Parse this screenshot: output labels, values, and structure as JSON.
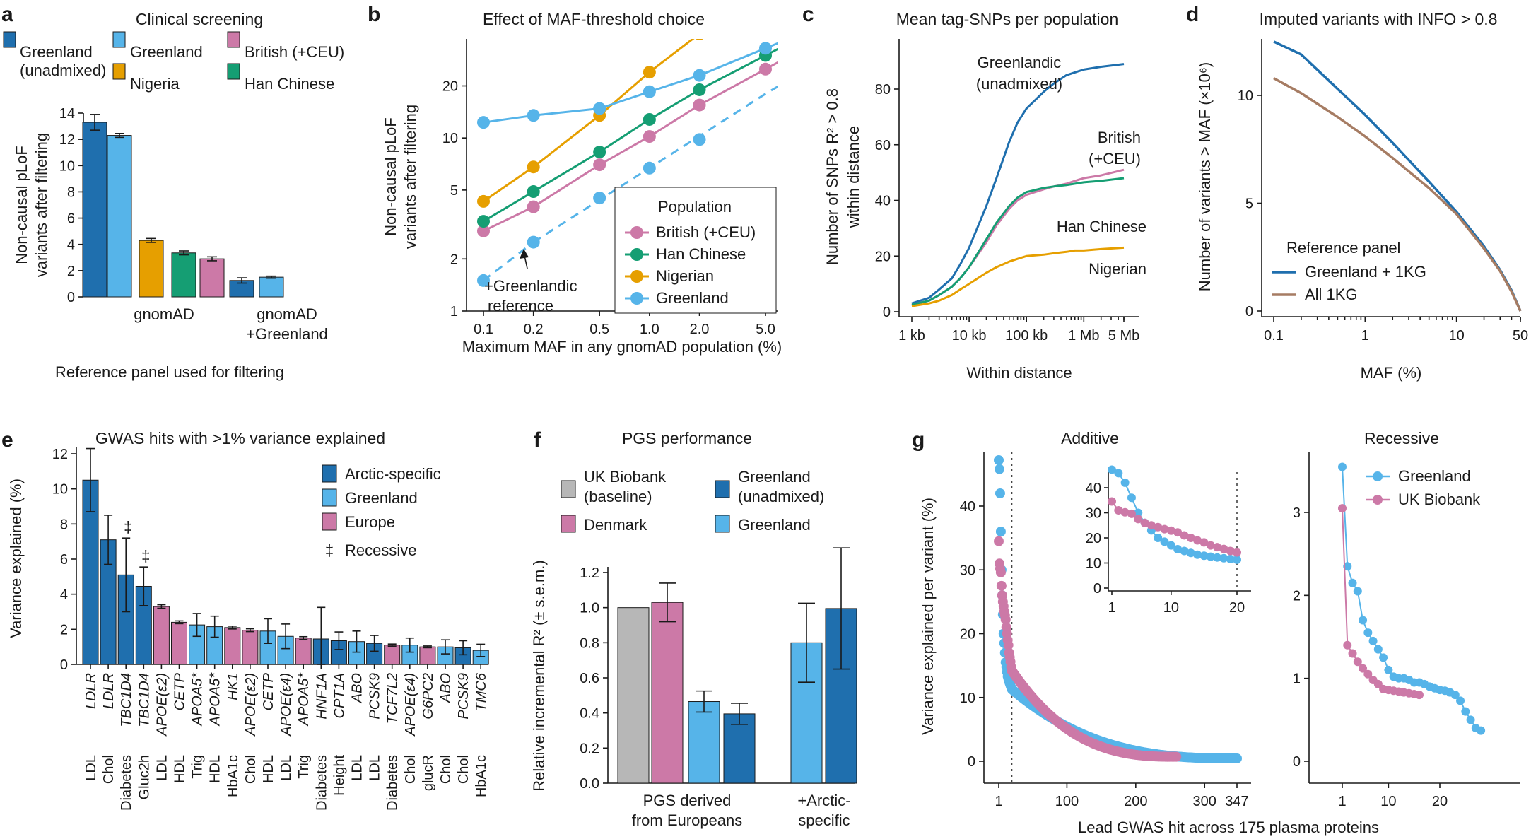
{
  "panel_labels": [
    "a",
    "b",
    "c",
    "d",
    "e",
    "f",
    "g"
  ],
  "colors": {
    "greenland_unadmixed": "#1f6fae",
    "greenland": "#56b4e9",
    "british": "#cc79a7",
    "nigeria": "#e69f00",
    "han": "#159e73",
    "gray": "#b7b7b7",
    "all1kg": "#a67c63"
  },
  "chart_data": [
    {
      "id": "a",
      "type": "bar",
      "title": "Clinical screening",
      "ylabel": "Non-causal pLoF variants after filtering",
      "xlabel": "Reference panel used for filtering",
      "ylim": [
        0,
        14
      ],
      "yticks": [
        0,
        2,
        4,
        6,
        8,
        10,
        12,
        14
      ],
      "groups": [
        "gnomAD",
        "gnomAD +Greenland"
      ],
      "legend": [
        "Greenland (unadmixed)",
        "Greenland",
        "British (+CEU)",
        "Nigeria",
        "Han Chinese"
      ],
      "bars": [
        {
          "group": 0,
          "series": "Greenland (unadmixed)",
          "value": 13.3,
          "err": 0.6
        },
        {
          "group": 0,
          "series": "Greenland",
          "value": 12.3,
          "err": 0.15
        },
        {
          "group": 0,
          "series": "Nigeria",
          "value": 4.3,
          "err": 0.15
        },
        {
          "group": 0,
          "series": "Han Chinese",
          "value": 3.35,
          "err": 0.15
        },
        {
          "group": 0,
          "series": "British (+CEU)",
          "value": 2.9,
          "err": 0.15
        },
        {
          "group": 1,
          "series": "Greenland (unadmixed)",
          "value": 1.25,
          "err": 0.2
        },
        {
          "group": 1,
          "series": "Greenland",
          "value": 1.5,
          "err": 0.08
        }
      ]
    },
    {
      "id": "b",
      "type": "line",
      "title": "Effect of MAF-threshold choice",
      "xlabel": "Maximum MAF in any gnomAD population (%)",
      "ylabel": "Non-causal pLoF variants after filtering",
      "x_scale": "log",
      "y_scale": "log",
      "xticks": [
        "0.1",
        "0.2",
        "0.5",
        "1.0",
        "2.0",
        "5.0"
      ],
      "yticks": [
        "1",
        "2",
        "5",
        "10",
        "20"
      ],
      "x": [
        0.1,
        0.2,
        0.5,
        1.0,
        2.0,
        5.0
      ],
      "legend_title": "Population",
      "series": [
        {
          "name": "British (+CEU)",
          "values": [
            2.9,
            4.0,
            7.0,
            10.2,
            15.5,
            25.0
          ]
        },
        {
          "name": "Han Chinese",
          "values": [
            3.3,
            4.9,
            8.3,
            12.8,
            19.0,
            30.0
          ]
        },
        {
          "name": "Nigerian",
          "values": [
            4.3,
            6.8,
            13.5,
            24.0,
            40.0,
            70.0
          ]
        },
        {
          "name": "Greenland",
          "values": [
            12.3,
            13.5,
            14.8,
            18.5,
            23.0,
            33.0
          ]
        },
        {
          "name": "",
          "values": [
            1.5,
            2.5,
            4.5,
            6.7,
            9.8,
            18.0
          ],
          "dashed": true
        }
      ],
      "annotation": "+Greenlandic reference"
    },
    {
      "id": "c",
      "type": "line",
      "title": "Mean tag-SNPs per population",
      "xlabel": "Within distance",
      "ylabel": "Number of SNPs R² > 0.8 within distance",
      "x_scale": "log",
      "xticks": [
        "1 kb",
        "10 kb",
        "100 kb",
        "1 Mb",
        "5 Mb"
      ],
      "yticks": [
        0,
        20,
        40,
        60,
        80
      ],
      "ylim": [
        0,
        95
      ],
      "x_kb": [
        1,
        2,
        3,
        5,
        7,
        10,
        20,
        30,
        50,
        70,
        100,
        200,
        300,
        500,
        700,
        1000,
        2000,
        5000
      ],
      "series": [
        {
          "name": "Greenlandic (unadmixed)",
          "values": [
            3,
            5,
            8,
            12,
            17,
            23,
            38,
            48,
            61,
            68,
            73,
            79,
            82,
            85,
            86,
            87,
            88,
            89
          ]
        },
        {
          "name": "British (+CEU)",
          "values": [
            2.5,
            4,
            6,
            9,
            12,
            16,
            25,
            31,
            37,
            40,
            42,
            44,
            45,
            46,
            47,
            48,
            49,
            51
          ]
        },
        {
          "name": "Han Chinese",
          "values": [
            2.5,
            4,
            6,
            9,
            12,
            16,
            26,
            32,
            38,
            41,
            43,
            44.5,
            45,
            45.5,
            46,
            46.5,
            47,
            48
          ]
        },
        {
          "name": "Nigerian",
          "values": [
            2,
            3,
            4,
            6,
            8,
            10,
            14,
            16,
            18,
            19,
            20,
            20.5,
            21,
            21.5,
            22,
            22,
            22.5,
            23
          ]
        }
      ]
    },
    {
      "id": "d",
      "type": "line",
      "title": "Imputed variants with INFO > 0.8",
      "xlabel": "MAF (%)",
      "ylabel": "Number of variants > MAF (×10⁶)",
      "x_scale": "log",
      "xticks": [
        "0.1",
        "1",
        "10",
        "50"
      ],
      "yticks": [
        0,
        5,
        10
      ],
      "legend_title": "Reference panel",
      "maf": [
        0.1,
        0.2,
        0.5,
        1,
        2,
        5,
        10,
        20,
        30,
        40,
        50
      ],
      "series": [
        {
          "name": "Greenland + 1KG",
          "values": [
            12.5,
            11.9,
            10.3,
            9.1,
            7.8,
            6.0,
            4.6,
            3.0,
            1.9,
            0.95,
            0.0
          ]
        },
        {
          "name": "All 1KG",
          "values": [
            10.8,
            10.1,
            9.0,
            8.1,
            7.1,
            5.7,
            4.5,
            2.9,
            1.85,
            0.9,
            0.0
          ]
        }
      ]
    },
    {
      "id": "e",
      "type": "bar",
      "title": "GWAS hits with >1% variance explained",
      "ylabel": "Variance explained (%)",
      "ylim": [
        0,
        12
      ],
      "yticks": [
        0,
        2,
        4,
        6,
        8,
        10,
        12
      ],
      "legend": [
        "Arctic-specific",
        "Greenland",
        "Europe",
        "Recessive"
      ],
      "recessive_marker": "‡",
      "hits": [
        {
          "gene": "LDLR",
          "trait": "LDL",
          "value": 10.5,
          "err": 1.8,
          "cat": "Arctic-specific"
        },
        {
          "gene": "LDLR",
          "trait": "Chol",
          "value": 7.1,
          "err": 1.4,
          "cat": "Arctic-specific"
        },
        {
          "gene": "TBC1D4",
          "trait": "Diabetes",
          "value": 5.1,
          "err": 2.1,
          "cat": "Arctic-specific",
          "recessive": true
        },
        {
          "gene": "TBC1D4",
          "trait": "Gluc2h",
          "value": 4.45,
          "err": 1.1,
          "cat": "Arctic-specific",
          "recessive": true
        },
        {
          "gene": "APOE(ε2)",
          "trait": "LDL",
          "value": 3.3,
          "err": 0.1,
          "cat": "Europe"
        },
        {
          "gene": "CETP",
          "trait": "HDL",
          "value": 2.4,
          "err": 0.08,
          "cat": "Europe"
        },
        {
          "gene": "APOA5*",
          "trait": "Trig",
          "value": 2.25,
          "err": 0.65,
          "cat": "Greenland"
        },
        {
          "gene": "APOA5*",
          "trait": "HDL",
          "value": 2.15,
          "err": 0.6,
          "cat": "Greenland"
        },
        {
          "gene": "HK1",
          "trait": "HbA1c",
          "value": 2.1,
          "err": 0.08,
          "cat": "Europe"
        },
        {
          "gene": "APOE(ε2)",
          "trait": "Chol",
          "value": 1.95,
          "err": 0.08,
          "cat": "Europe"
        },
        {
          "gene": "CETP",
          "trait": "HDL",
          "value": 1.9,
          "err": 0.7,
          "cat": "Greenland"
        },
        {
          "gene": "APOE(ε4)",
          "trait": "LDL",
          "value": 1.6,
          "err": 0.7,
          "cat": "Greenland"
        },
        {
          "gene": "APOA5*",
          "trait": "Trig",
          "value": 1.5,
          "err": 0.08,
          "cat": "Europe"
        },
        {
          "gene": "HNF1A",
          "trait": "Diabetes",
          "value": 1.45,
          "err": 1.8,
          "cat": "Arctic-specific"
        },
        {
          "gene": "CPT1A",
          "trait": "Height",
          "value": 1.35,
          "err": 0.5,
          "cat": "Arctic-specific"
        },
        {
          "gene": "ABO",
          "trait": "LDL",
          "value": 1.3,
          "err": 0.6,
          "cat": "Greenland"
        },
        {
          "gene": "PCSK9",
          "trait": "LDL",
          "value": 1.2,
          "err": 0.45,
          "cat": "Arctic-specific"
        },
        {
          "gene": "TCF7L2",
          "trait": "Diabetes",
          "value": 1.1,
          "err": 0.06,
          "cat": "Europe"
        },
        {
          "gene": "APOE(ε4)",
          "trait": "Chol",
          "value": 1.1,
          "err": 0.4,
          "cat": "Greenland"
        },
        {
          "gene": "G6PC2",
          "trait": "glucR",
          "value": 1.0,
          "err": 0.05,
          "cat": "Europe"
        },
        {
          "gene": "ABO",
          "trait": "Chol",
          "value": 1.0,
          "err": 0.4,
          "cat": "Greenland"
        },
        {
          "gene": "PCSK9",
          "trait": "Chol",
          "value": 0.95,
          "err": 0.4,
          "cat": "Arctic-specific"
        },
        {
          "gene": "TMC6",
          "trait": "HbA1c",
          "value": 0.8,
          "err": 0.35,
          "cat": "Greenland"
        }
      ]
    },
    {
      "id": "f",
      "type": "bar",
      "title": "PGS performance",
      "ylabel": "Relative incremental R² (± s.e.m.)",
      "ylim": [
        0,
        1.4
      ],
      "yticks": [
        0,
        0.2,
        0.4,
        0.6,
        0.8,
        1.0,
        1.2
      ],
      "groups": [
        "PGS derived from Europeans",
        "+Arctic-specific"
      ],
      "legend": [
        "UK Biobank (baseline)",
        "Greenland (unadmixed)",
        "Denmark",
        "Greenland"
      ],
      "bars": [
        {
          "group": 0,
          "series": "UK Biobank (baseline)",
          "value": 1.0,
          "err": 0
        },
        {
          "group": 0,
          "series": "Denmark",
          "value": 1.03,
          "err": 0.11
        },
        {
          "group": 0,
          "series": "Greenland",
          "value": 0.465,
          "err": 0.06
        },
        {
          "group": 0,
          "series": "Greenland (unadmixed)",
          "value": 0.395,
          "err": 0.06
        },
        {
          "group": 1,
          "series": "Greenland",
          "value": 0.8,
          "err": 0.225
        },
        {
          "group": 1,
          "series": "Greenland (unadmixed)",
          "value": 0.995,
          "err": 0.345
        }
      ]
    },
    {
      "id": "g-additive",
      "type": "scatter",
      "title": "Additive",
      "ylabel": "Variance explained per variant (%)",
      "xlabel": "Lead GWAS hit across 175 plasma proteins",
      "xticks": [
        "1",
        "100",
        "200",
        "300",
        "347"
      ],
      "yticks": [
        0,
        10,
        20,
        30,
        40
      ],
      "ylim": [
        0,
        49
      ],
      "vline_x": 20,
      "series": [
        {
          "name": "Greenland",
          "n": 347,
          "head": [
            47.2,
            45.8,
            42.0,
            36.0,
            30.0,
            26.0,
            23.0,
            20.0,
            18.5,
            17.0,
            15.5,
            14.8,
            14.0,
            13.3,
            12.9,
            12.5,
            12.2,
            11.9,
            11.6,
            11.3
          ],
          "tail_end": 0.45
        },
        {
          "name": "UK Biobank",
          "n": 260,
          "head": [
            34.5,
            31.0,
            30.2,
            29.6,
            27.5,
            26.0,
            25.0,
            24.3,
            23.5,
            22.9,
            22.2,
            21.0,
            20.0,
            19.0,
            18.2,
            17.0,
            16.3,
            15.6,
            14.8,
            14.2
          ],
          "tail_end": 0.7
        }
      ],
      "inset": {
        "xticks": [
          "1",
          "10",
          "20"
        ],
        "yticks": [
          0,
          10,
          20,
          30,
          40
        ],
        "xlim": [
          1,
          20
        ]
      }
    },
    {
      "id": "g-recessive",
      "type": "scatter",
      "title": "Recessive",
      "xticks": [
        "1",
        "10",
        "20"
      ],
      "yticks": [
        0,
        1,
        2,
        3
      ],
      "ylim": [
        0,
        3.7
      ],
      "legend": [
        "Greenland",
        "UK Biobank"
      ],
      "series": [
        {
          "name": "Greenland",
          "values": [
            3.55,
            2.35,
            2.15,
            2.05,
            1.7,
            1.55,
            1.45,
            1.35,
            1.25,
            1.1,
            1.02,
            1.0,
            1.0,
            0.98,
            0.95,
            0.95,
            0.93,
            0.9,
            0.88,
            0.86,
            0.85,
            0.83,
            0.8,
            0.73,
            0.6,
            0.5,
            0.4,
            0.37
          ]
        },
        {
          "name": "UK Biobank",
          "values": [
            3.05,
            1.4,
            1.3,
            1.2,
            1.12,
            1.05,
            0.98,
            0.93,
            0.87,
            0.86,
            0.85,
            0.84,
            0.83,
            0.82,
            0.81,
            0.8
          ]
        }
      ]
    }
  ]
}
